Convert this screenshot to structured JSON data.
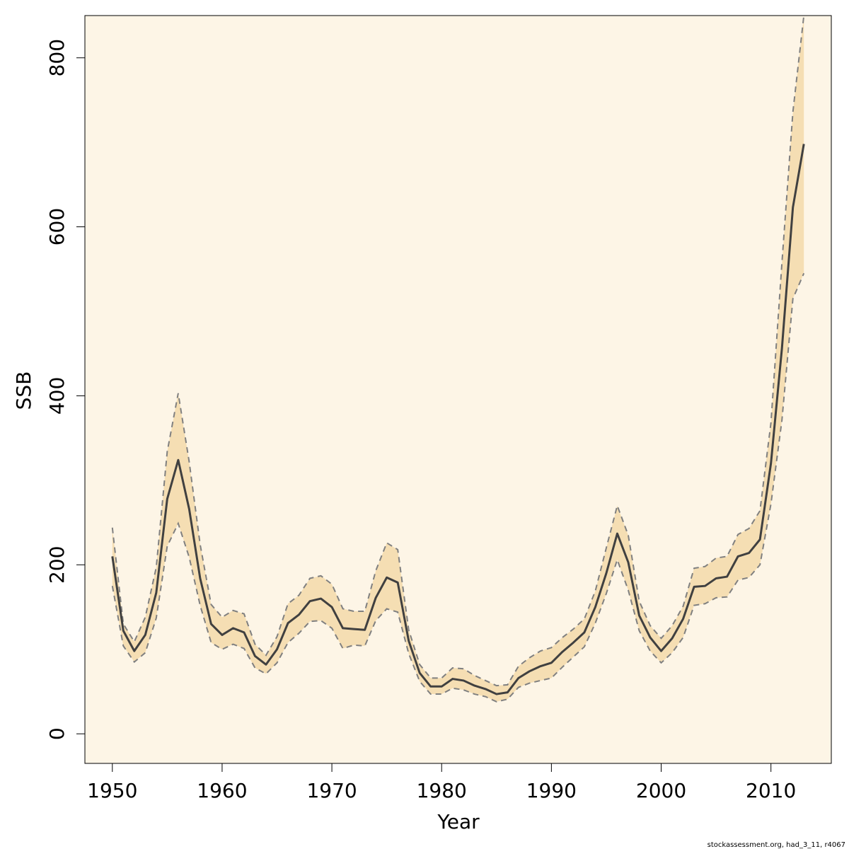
{
  "chart_data": {
    "type": "area",
    "xlabel": "Year",
    "ylabel": "SSB",
    "xlim": [
      1947.5,
      2015.5
    ],
    "ylim": [
      -35,
      850
    ],
    "x_ticks": [
      1950,
      1960,
      1970,
      1980,
      1990,
      2000,
      2010
    ],
    "y_ticks": [
      0,
      200,
      400,
      600,
      800
    ],
    "grid": false,
    "legend": "none",
    "colors": {
      "band_fill": "#f5deb3",
      "band_edge": "#808080",
      "estimate_line": "#404040",
      "plot_background": "#fdf5e6",
      "axis": "#000000"
    },
    "x": [
      1950,
      1951,
      1952,
      1953,
      1954,
      1955,
      1956,
      1957,
      1958,
      1959,
      1960,
      1961,
      1962,
      1963,
      1964,
      1965,
      1966,
      1967,
      1968,
      1969,
      1970,
      1971,
      1972,
      1973,
      1974,
      1975,
      1976,
      1977,
      1978,
      1979,
      1980,
      1981,
      1982,
      1983,
      1984,
      1985,
      1986,
      1987,
      1988,
      1989,
      1990,
      1991,
      1992,
      1993,
      1994,
      1995,
      1996,
      1997,
      1998,
      1999,
      2000,
      2001,
      2002,
      2003,
      2004,
      2005,
      2006,
      2007,
      2008,
      2009,
      2010,
      2011,
      2012,
      2013
    ],
    "series": [
      {
        "name": "",
        "role": "upper",
        "values": [
          244,
          130,
          109,
          138,
          197,
          334,
          403,
          322,
          224,
          153,
          138,
          146,
          142,
          106,
          93,
          115,
          154,
          164,
          184,
          187,
          177,
          148,
          145,
          145,
          193,
          226,
          218,
          123,
          82,
          66,
          66,
          78,
          77,
          69,
          63,
          57,
          58,
          80,
          90,
          98,
          102,
          114,
          124,
          136,
          169,
          220,
          270,
          235,
          157,
          128,
          113,
          128,
          151,
          196,
          198,
          208,
          210,
          236,
          243,
          264,
          368,
          557,
          736,
          850
        ]
      },
      {
        "name": "",
        "role": "estimate",
        "values": [
          210,
          122,
          98,
          117,
          167,
          278,
          324,
          266,
          184,
          130,
          117,
          125,
          120,
          92,
          82,
          100,
          131,
          141,
          157,
          160,
          150,
          125,
          124,
          123,
          161,
          185,
          179,
          110,
          72,
          56,
          56,
          65,
          63,
          57,
          53,
          47,
          49,
          66,
          74,
          80,
          84,
          97,
          108,
          120,
          150,
          190,
          237,
          203,
          140,
          114,
          98,
          113,
          136,
          174,
          175,
          184,
          186,
          210,
          214,
          230,
          320,
          456,
          623,
          698
        ]
      },
      {
        "name": "",
        "role": "lower",
        "values": [
          175,
          104,
          85,
          96,
          137,
          222,
          249,
          209,
          152,
          108,
          100,
          106,
          101,
          78,
          71,
          84,
          108,
          119,
          133,
          134,
          125,
          101,
          105,
          104,
          134,
          148,
          144,
          95,
          62,
          47,
          47,
          54,
          52,
          47,
          44,
          38,
          41,
          55,
          60,
          63,
          66,
          79,
          91,
          103,
          131,
          166,
          206,
          170,
          122,
          98,
          84,
          96,
          114,
          152,
          154,
          161,
          162,
          182,
          185,
          200,
          272,
          371,
          515,
          545
        ]
      }
    ],
    "annotation": "stockassessment.org, had_3_11, r4067"
  }
}
